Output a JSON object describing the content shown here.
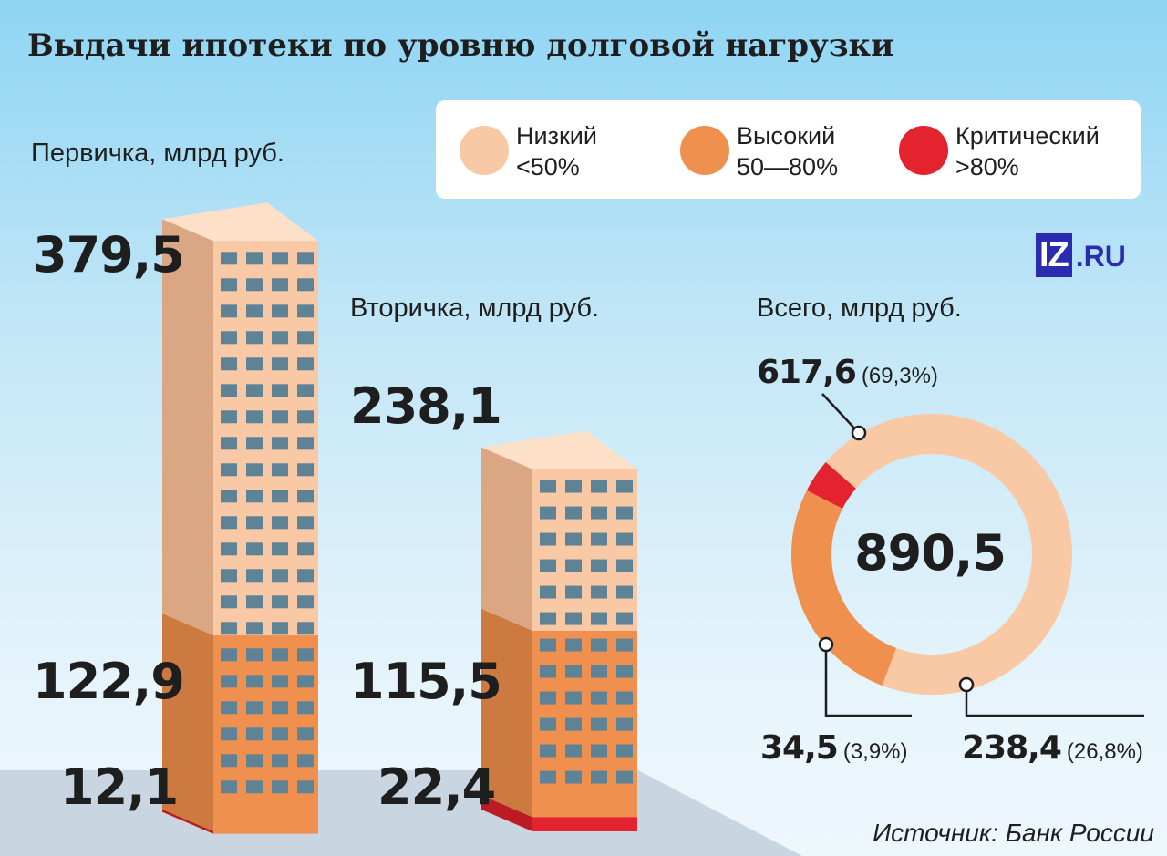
{
  "title": "Выдачи ипотеки по уровню долговой нагрузки",
  "source": "Источник: Банк России",
  "logo": {
    "box": "IZ",
    "suffix": ".RU"
  },
  "legend": [
    {
      "name": "Низкий",
      "range": "<50%",
      "color": "#f8c9a4"
    },
    {
      "name": "Высокий",
      "range": "50—80%",
      "color": "#f0904e"
    },
    {
      "name": "Критический",
      "range": ">80%",
      "color": "#e3232e"
    }
  ],
  "chart_data": [
    {
      "type": "bar",
      "title": "Первичка, млрд руб.",
      "stack": [
        {
          "category": "Низкий",
          "value": 244.5
        },
        {
          "category": "Высокий",
          "value": 122.9,
          "label": "122,9"
        },
        {
          "category": "Критический",
          "value": 12.1,
          "label": "12,1"
        }
      ],
      "total": 379.5,
      "total_label": "379,5"
    },
    {
      "type": "bar",
      "title": "Вторичка, млрд руб.",
      "stack": [
        {
          "category": "Низкий",
          "value": 100.2
        },
        {
          "category": "Высокий",
          "value": 115.5,
          "label": "115,5"
        },
        {
          "category": "Критический",
          "value": 22.4,
          "label": "22,4"
        }
      ],
      "total": 238.1,
      "total_label": "238,1"
    },
    {
      "type": "pie",
      "title": "Всего, млрд руб.",
      "total": 890.5,
      "total_label": "890,5",
      "slices": [
        {
          "category": "Низкий",
          "value": 617.6,
          "label": "617,6",
          "percent": "(69,3%)"
        },
        {
          "category": "Высокий",
          "value": 238.4,
          "label": "238,4",
          "percent": "(26,8%)"
        },
        {
          "category": "Критический",
          "value": 34.5,
          "label": "34,5",
          "percent": "(3,9%)"
        }
      ]
    }
  ]
}
